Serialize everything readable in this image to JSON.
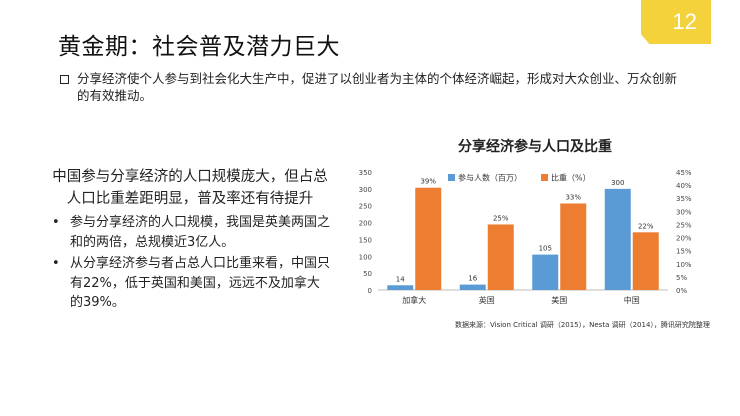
{
  "page": {
    "title": "黄金期：社会普及潜力巨大",
    "page_number": "12",
    "intro": "分享经济使个人参与到社会化大生产中，促进了以创业者为主体的个体经济崛起，形成对大众创业、万众创新的有效推动。",
    "lead": "中国参与分享经济的人口规模庞大，但占总人口比重差距明显，普及率还有待提升",
    "bullets": [
      "参与分享经济的人口规模，我国是英美两国之和的两倍，总规模近3亿人。",
      "从分享经济参与者占总人口比重来看，中国只有22%，低于英国和美国，远远不及加拿大的39%。"
    ],
    "bullet_mark": "•",
    "source": "数据来源：Vision Critical 调研（2015），Nesta 调研（2014），腾讯研究院整理"
  },
  "colors": {
    "blue": "#5b9bd5",
    "orange": "#ed7d31",
    "badge": "#f3d23b"
  },
  "chart_data": {
    "type": "bar",
    "title": "分享经济参与人口及比重",
    "categories": [
      "加拿大",
      "英国",
      "美国",
      "中国"
    ],
    "series": [
      {
        "name": "参与人数（百万）",
        "axis": "left",
        "color": "#5b9bd5",
        "values": [
          14,
          16,
          105,
          300
        ],
        "labels": [
          "14",
          "16",
          "105",
          "300"
        ]
      },
      {
        "name": "比重（%）",
        "axis": "right",
        "color": "#ed7d31",
        "values": [
          39,
          25,
          33,
          22
        ],
        "labels": [
          "39%",
          "25%",
          "33%",
          "22%"
        ]
      }
    ],
    "y_left": {
      "min": 0,
      "max": 350,
      "ticks": [
        "0",
        "50",
        "100",
        "150",
        "200",
        "250",
        "300",
        "350"
      ]
    },
    "y_right": {
      "min": 0,
      "max": 45,
      "ticks": [
        "0%",
        "5%",
        "10%",
        "15%",
        "20%",
        "25%",
        "30%",
        "35%",
        "40%",
        "45%"
      ]
    },
    "legend_position": "top-left",
    "grid": false
  }
}
